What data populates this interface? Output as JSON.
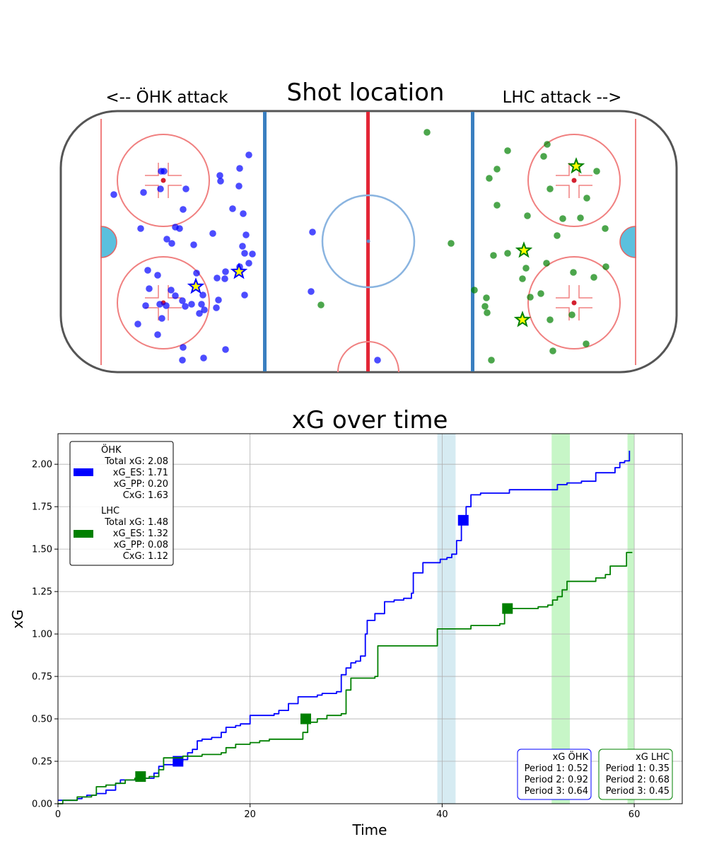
{
  "rink": {
    "title": "Shot location",
    "left_label": "<-- ÖHK attack",
    "right_label": "LHC attack -->",
    "blue_color": "#0000ff",
    "green_color": "#008000",
    "ohk_shots": [
      [
        161,
        275
      ],
      [
        203,
        272
      ],
      [
        228,
        242
      ],
      [
        232,
        242
      ],
      [
        227,
        267
      ],
      [
        263,
        267
      ],
      [
        259,
        296
      ],
      [
        199,
        323
      ],
      [
        236,
        338
      ],
      [
        248,
        321
      ],
      [
        254,
        323
      ],
      [
        243,
        344
      ],
      [
        274,
        346
      ],
      [
        301,
        330
      ],
      [
        311,
        248
      ],
      [
        312,
        256
      ],
      [
        339,
        238
      ],
      [
        352,
        219
      ],
      [
        338,
        263
      ],
      [
        344,
        302
      ],
      [
        329,
        295
      ],
      [
        348,
        332
      ],
      [
        343,
        348
      ],
      [
        346,
        358
      ],
      [
        357,
        359
      ],
      [
        352,
        372
      ],
      [
        339,
        377
      ],
      [
        319,
        384
      ],
      [
        307,
        393
      ],
      [
        318,
        394
      ],
      [
        278,
        386
      ],
      [
        209,
        382
      ],
      [
        223,
        389
      ],
      [
        211,
        408
      ],
      [
        242,
        410
      ],
      [
        248,
        418
      ],
      [
        206,
        432
      ],
      [
        226,
        430
      ],
      [
        235,
        432
      ],
      [
        258,
        425
      ],
      [
        262,
        433
      ],
      [
        287,
        417
      ],
      [
        285,
        430
      ],
      [
        289,
        438
      ],
      [
        282,
        443
      ],
      [
        271,
        430
      ],
      [
        309,
        424
      ],
      [
        306,
        435
      ],
      [
        346,
        417
      ],
      [
        229,
        450
      ],
      [
        195,
        458
      ],
      [
        223,
        473
      ],
      [
        259,
        491
      ],
      [
        319,
        494
      ],
      [
        258,
        509
      ],
      [
        288,
        506
      ],
      [
        442,
        328
      ],
      [
        440,
        412
      ],
      [
        534,
        509
      ]
    ],
    "ohk_goals": [
      [
        277,
        405
      ],
      [
        338,
        384
      ]
    ],
    "lhc_shots": [
      [
        604,
        187
      ],
      [
        718,
        213
      ],
      [
        774,
        204
      ],
      [
        769,
        221
      ],
      [
        703,
        239
      ],
      [
        692,
        252
      ],
      [
        844,
        242
      ],
      [
        778,
        267
      ],
      [
        830,
        280
      ],
      [
        703,
        290
      ],
      [
        746,
        305
      ],
      [
        796,
        309
      ],
      [
        821,
        308
      ],
      [
        856,
        323
      ],
      [
        788,
        333
      ],
      [
        638,
        344
      ],
      [
        718,
        358
      ],
      [
        698,
        361
      ],
      [
        773,
        372
      ],
      [
        744,
        379
      ],
      [
        811,
        385
      ],
      [
        857,
        377
      ],
      [
        840,
        392
      ],
      [
        739,
        394
      ],
      [
        671,
        410
      ],
      [
        688,
        421
      ],
      [
        686,
        433
      ],
      [
        689,
        442
      ],
      [
        750,
        420
      ],
      [
        765,
        415
      ],
      [
        809,
        445
      ],
      [
        778,
        452
      ],
      [
        829,
        486
      ],
      [
        782,
        496
      ],
      [
        695,
        509
      ],
      [
        454,
        431
      ]
    ],
    "lhc_goals": [
      [
        815,
        235
      ],
      [
        741,
        354
      ],
      [
        739,
        452
      ]
    ]
  },
  "chart_data": {
    "type": "line",
    "title": "xG over time",
    "xlabel": "Time",
    "ylabel": "xG",
    "xlim": [
      0,
      65
    ],
    "ylim": [
      0,
      2.18
    ],
    "x_ticks": [
      0,
      20,
      40,
      60
    ],
    "y_ticks": [
      0.0,
      0.25,
      0.5,
      0.75,
      1.0,
      1.25,
      1.5,
      1.75,
      2.0
    ],
    "x_tick_labels": [
      "0",
      "20",
      "40",
      "60"
    ],
    "y_tick_labels": [
      "0.00",
      "0.25",
      "0.50",
      "0.75",
      "1.00",
      "1.25",
      "1.50",
      "1.75",
      "2.00"
    ],
    "grid": true,
    "series": [
      {
        "name": "ÖHK",
        "color": "#0000ff",
        "points": [
          [
            0,
            0.02
          ],
          [
            1.5,
            0.02
          ],
          [
            2.0,
            0.03
          ],
          [
            2.5,
            0.04
          ],
          [
            3.0,
            0.05
          ],
          [
            4.0,
            0.06
          ],
          [
            5.0,
            0.08
          ],
          [
            6.0,
            0.12
          ],
          [
            6.5,
            0.14
          ],
          [
            8.0,
            0.14
          ],
          [
            9.0,
            0.15
          ],
          [
            10.0,
            0.18
          ],
          [
            10.5,
            0.22
          ],
          [
            11.0,
            0.23
          ],
          [
            12.5,
            0.25
          ],
          [
            13.0,
            0.26
          ],
          [
            13.5,
            0.3
          ],
          [
            14.0,
            0.32
          ],
          [
            14.5,
            0.37
          ],
          [
            15.0,
            0.38
          ],
          [
            15.5,
            0.38
          ],
          [
            16.0,
            0.39
          ],
          [
            17.0,
            0.42
          ],
          [
            17.5,
            0.45
          ],
          [
            18.0,
            0.45
          ],
          [
            18.5,
            0.46
          ],
          [
            19.0,
            0.47
          ],
          [
            20.0,
            0.52
          ],
          [
            21.5,
            0.52
          ],
          [
            22.5,
            0.53
          ],
          [
            23.0,
            0.55
          ],
          [
            24.0,
            0.59
          ],
          [
            25.0,
            0.63
          ],
          [
            26.0,
            0.63
          ],
          [
            27.0,
            0.64
          ],
          [
            27.5,
            0.65
          ],
          [
            28.0,
            0.65
          ],
          [
            29.0,
            0.66
          ],
          [
            29.5,
            0.76
          ],
          [
            30.0,
            0.8
          ],
          [
            30.5,
            0.83
          ],
          [
            31.0,
            0.84
          ],
          [
            31.5,
            0.87
          ],
          [
            32.0,
            1.0
          ],
          [
            32.2,
            1.08
          ],
          [
            33.0,
            1.12
          ],
          [
            34.0,
            1.19
          ],
          [
            35.0,
            1.2
          ],
          [
            36.0,
            1.21
          ],
          [
            36.8,
            1.24
          ],
          [
            37.0,
            1.36
          ],
          [
            38.0,
            1.42
          ],
          [
            39.5,
            1.42
          ],
          [
            39.8,
            1.44
          ],
          [
            40.5,
            1.45
          ],
          [
            41.0,
            1.47
          ],
          [
            41.5,
            1.55
          ],
          [
            42.0,
            1.66
          ],
          [
            42.5,
            1.75
          ],
          [
            43.0,
            1.82
          ],
          [
            44.0,
            1.83
          ],
          [
            46.0,
            1.83
          ],
          [
            47.0,
            1.85
          ],
          [
            51.5,
            1.85
          ],
          [
            52.0,
            1.88
          ],
          [
            53.0,
            1.89
          ],
          [
            54.5,
            1.9
          ],
          [
            55.5,
            1.9
          ],
          [
            56.0,
            1.95
          ],
          [
            57.5,
            1.95
          ],
          [
            58.0,
            1.98
          ],
          [
            58.5,
            2.01
          ],
          [
            59.0,
            2.02
          ],
          [
            59.5,
            2.08
          ]
        ],
        "markers": [
          [
            12.5,
            0.25
          ],
          [
            42.2,
            1.67
          ]
        ]
      },
      {
        "name": "LHC",
        "color": "#008000",
        "points": [
          [
            0,
            0.0
          ],
          [
            0.5,
            0.02
          ],
          [
            1.5,
            0.02
          ],
          [
            2.0,
            0.04
          ],
          [
            3.5,
            0.05
          ],
          [
            4.0,
            0.1
          ],
          [
            5.0,
            0.11
          ],
          [
            6.0,
            0.12
          ],
          [
            7.0,
            0.14
          ],
          [
            8.0,
            0.15
          ],
          [
            9.5,
            0.16
          ],
          [
            10.5,
            0.2
          ],
          [
            11.0,
            0.27
          ],
          [
            12.0,
            0.27
          ],
          [
            13.0,
            0.28
          ],
          [
            14.0,
            0.28
          ],
          [
            15.0,
            0.29
          ],
          [
            17.0,
            0.3
          ],
          [
            17.5,
            0.33
          ],
          [
            18.5,
            0.35
          ],
          [
            20.0,
            0.36
          ],
          [
            21.0,
            0.37
          ],
          [
            22.0,
            0.38
          ],
          [
            25.0,
            0.38
          ],
          [
            25.5,
            0.42
          ],
          [
            26.0,
            0.48
          ],
          [
            27.0,
            0.5
          ],
          [
            28.0,
            0.52
          ],
          [
            29.5,
            0.53
          ],
          [
            30.0,
            0.67
          ],
          [
            30.5,
            0.74
          ],
          [
            33.0,
            0.75
          ],
          [
            33.3,
            0.93
          ],
          [
            38.0,
            0.93
          ],
          [
            39.5,
            1.03
          ],
          [
            42.5,
            1.03
          ],
          [
            43.0,
            1.05
          ],
          [
            45.0,
            1.05
          ],
          [
            46.0,
            1.06
          ],
          [
            46.5,
            1.15
          ],
          [
            50.0,
            1.16
          ],
          [
            51.0,
            1.17
          ],
          [
            51.5,
            1.2
          ],
          [
            52.0,
            1.22
          ],
          [
            52.5,
            1.26
          ],
          [
            53.0,
            1.31
          ],
          [
            55.0,
            1.31
          ],
          [
            56.0,
            1.33
          ],
          [
            57.0,
            1.35
          ],
          [
            57.5,
            1.4
          ],
          [
            59.0,
            1.4
          ],
          [
            59.2,
            1.48
          ],
          [
            59.8,
            1.48
          ]
        ],
        "markers": [
          [
            8.6,
            0.16
          ],
          [
            25.8,
            0.5
          ],
          [
            46.8,
            1.15
          ]
        ]
      }
    ],
    "shaded_regions": [
      {
        "x0": 39.5,
        "x1": 41.4,
        "color": "#add8e6"
      },
      {
        "x0": 51.4,
        "x1": 53.3,
        "color": "#90ee90"
      },
      {
        "x0": 59.3,
        "x1": 60.0,
        "color": "#90ee90"
      }
    ],
    "legend": {
      "placement": "top-left",
      "entries": [
        {
          "color": "#0000ff",
          "lines": [
            "ÖHK",
            "Total xG: 2.08",
            "xG_ES: 1.71",
            "xG_PP: 0.20",
            "CxG: 1.63"
          ]
        },
        {
          "color": "#008000",
          "lines": [
            "LHC",
            "Total xG: 1.48",
            "xG_ES: 1.32",
            "xG_PP: 0.08",
            "CxG: 1.12"
          ]
        }
      ]
    },
    "period_boxes": [
      {
        "placement": "bottom-right",
        "color": "#0000ff",
        "lines": [
          "xG ÖHK",
          "Period 1: 0.52",
          "Period 2: 0.92",
          "Period 3: 0.64"
        ]
      },
      {
        "placement": "bottom-right",
        "color": "#008000",
        "lines": [
          "xG LHC",
          "Period 1: 0.35",
          "Period 2: 0.68",
          "Period 3: 0.45"
        ]
      }
    ]
  }
}
